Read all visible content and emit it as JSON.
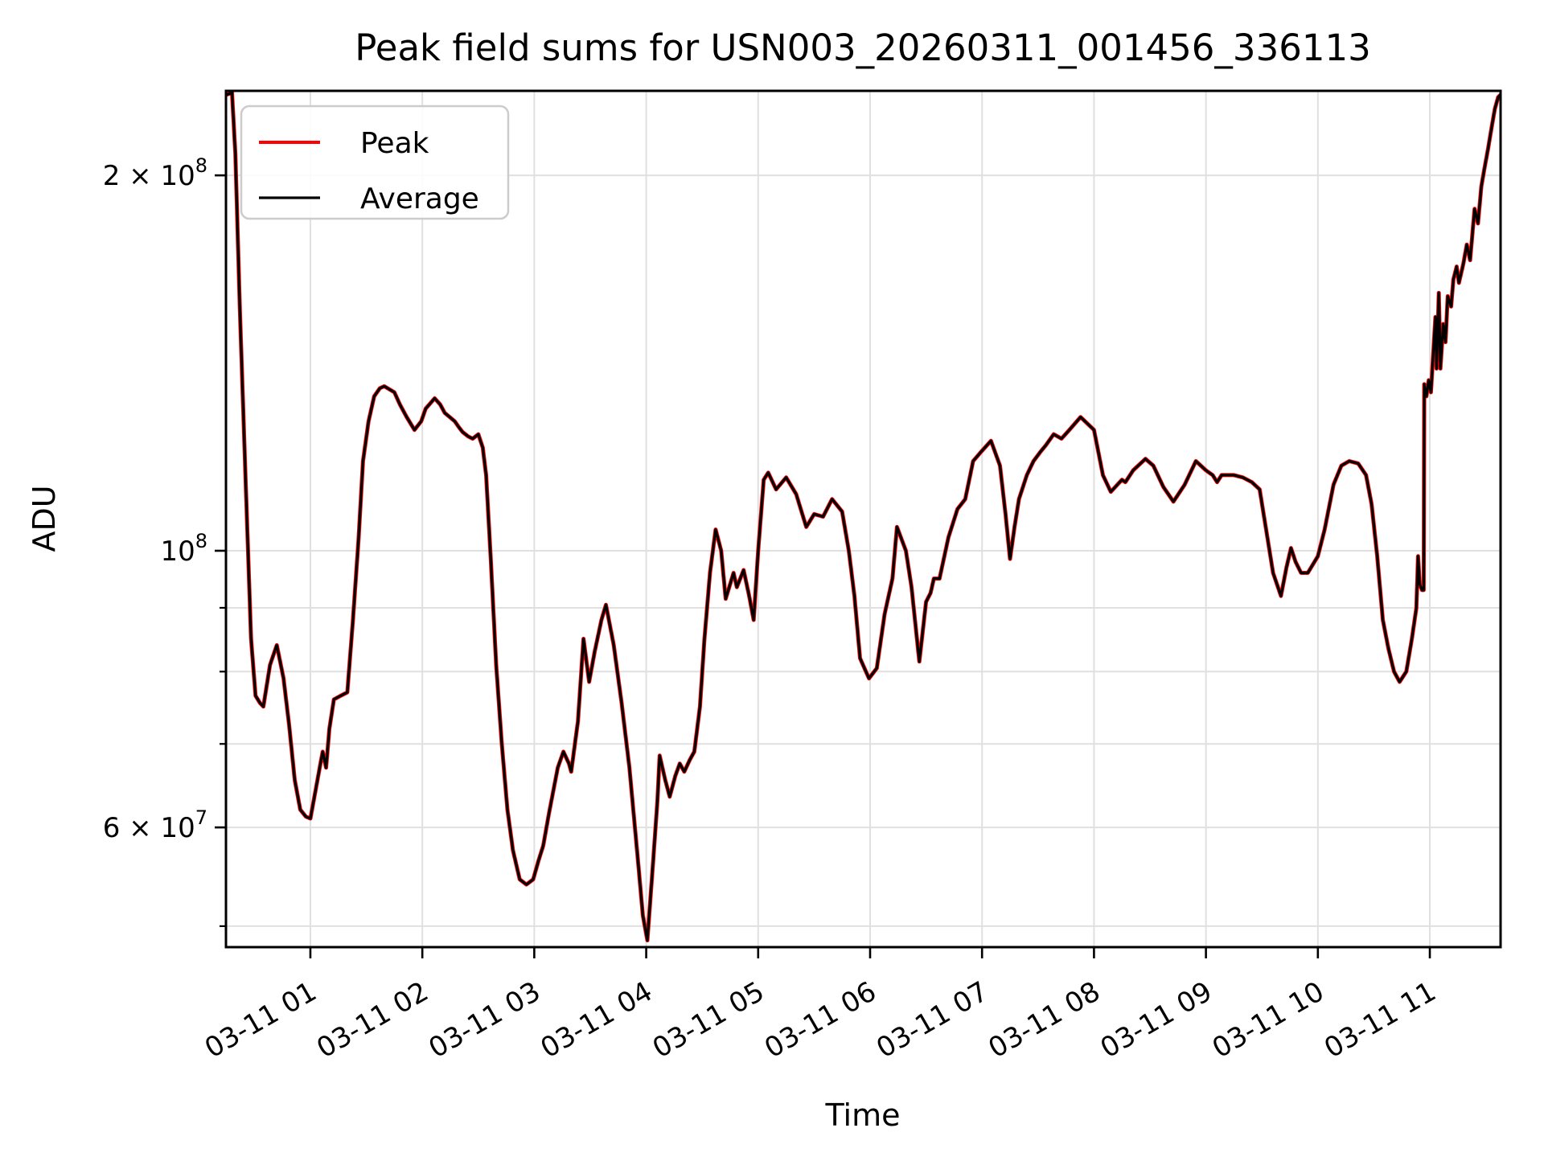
{
  "chart_data": {
    "type": "line",
    "title": "Peak field sums for USN003_20260311_001456_336113",
    "xlabel": "Time",
    "ylabel": "ADU",
    "value_unit": "ADU, stored as millions (1e6)",
    "x_unit": "hours on 2026-03-11",
    "xlim_hours": [
      0.246,
      11.632
    ],
    "ylim": [
      48100000,
      233700000
    ],
    "yscale": "log",
    "grid": true,
    "legend_position": "upper left",
    "colors": {
      "peak": "#ff0000",
      "average": "#000000",
      "grid": "#e0e0e0",
      "spine": "#000000",
      "legend_border": "#cccccc"
    },
    "x_ticks": [
      {
        "hour": 1,
        "label": "03-11 01"
      },
      {
        "hour": 2,
        "label": "03-11 02"
      },
      {
        "hour": 3,
        "label": "03-11 03"
      },
      {
        "hour": 4,
        "label": "03-11 04"
      },
      {
        "hour": 5,
        "label": "03-11 05"
      },
      {
        "hour": 6,
        "label": "03-11 06"
      },
      {
        "hour": 7,
        "label": "03-11 07"
      },
      {
        "hour": 8,
        "label": "03-11 08"
      },
      {
        "hour": 9,
        "label": "03-11 09"
      },
      {
        "hour": 10,
        "label": "03-11 10"
      },
      {
        "hour": 11,
        "label": "03-11 11"
      }
    ],
    "y_ticks_labeled": [
      {
        "value": 60000000,
        "mantissa": "6 × 10",
        "exp": "7"
      },
      {
        "value": 100000000,
        "mantissa": "10",
        "exp": "8"
      },
      {
        "value": 200000000,
        "mantissa": "2 × 10",
        "exp": "8"
      }
    ],
    "y_ticks_minor": [
      50000000,
      70000000,
      80000000,
      90000000
    ],
    "x_hours": [
      0.246,
      0.3,
      0.33,
      0.37,
      0.42,
      0.47,
      0.51,
      0.55,
      0.58,
      0.64,
      0.7,
      0.76,
      0.81,
      0.86,
      0.91,
      0.96,
      1.0,
      1.05,
      1.09,
      1.11,
      1.14,
      1.17,
      1.21,
      1.27,
      1.33,
      1.38,
      1.43,
      1.47,
      1.52,
      1.57,
      1.62,
      1.66,
      1.72,
      1.75,
      1.8,
      1.86,
      1.93,
      1.99,
      2.03,
      2.11,
      2.16,
      2.2,
      2.29,
      2.33,
      2.36,
      2.41,
      2.45,
      2.5,
      2.54,
      2.57,
      2.61,
      2.66,
      2.71,
      2.76,
      2.81,
      2.87,
      2.93,
      2.99,
      3.04,
      3.08,
      3.13,
      3.21,
      3.26,
      3.31,
      3.33,
      3.39,
      3.44,
      3.49,
      3.54,
      3.6,
      3.64,
      3.71,
      3.78,
      3.85,
      3.93,
      3.97,
      4.01,
      4.06,
      4.1,
      4.12,
      4.17,
      4.21,
      4.26,
      4.3,
      4.34,
      4.39,
      4.43,
      4.48,
      4.52,
      4.57,
      4.62,
      4.67,
      4.71,
      4.78,
      4.81,
      4.87,
      4.92,
      4.96,
      5.0,
      5.05,
      5.09,
      5.16,
      5.25,
      5.34,
      5.43,
      5.5,
      5.58,
      5.66,
      5.75,
      5.81,
      5.86,
      5.91,
      5.99,
      6.06,
      6.13,
      6.2,
      6.24,
      6.32,
      6.37,
      6.44,
      6.5,
      6.54,
      6.57,
      6.62,
      6.7,
      6.78,
      6.85,
      6.92,
      6.99,
      7.08,
      7.16,
      7.21,
      7.25,
      7.29,
      7.33,
      7.4,
      7.46,
      7.52,
      7.57,
      7.64,
      7.71,
      7.78,
      7.88,
      8.0,
      8.08,
      8.15,
      8.21,
      8.25,
      8.28,
      8.35,
      8.46,
      8.53,
      8.62,
      8.71,
      8.81,
      8.91,
      9.0,
      9.06,
      9.1,
      9.14,
      9.25,
      9.33,
      9.41,
      9.48,
      9.53,
      9.6,
      9.67,
      9.72,
      9.76,
      9.8,
      9.85,
      9.91,
      10.0,
      10.06,
      10.14,
      10.21,
      10.28,
      10.36,
      10.43,
      10.48,
      10.53,
      10.58,
      10.63,
      10.68,
      10.73,
      10.79,
      10.84,
      10.88,
      10.895,
      10.91,
      10.93,
      10.945,
      10.95,
      10.97,
      10.99,
      11.01,
      11.05,
      11.06,
      11.08,
      11.095,
      11.12,
      11.14,
      11.16,
      11.19,
      11.21,
      11.24,
      11.26,
      11.3,
      11.33,
      11.36,
      11.4,
      11.43,
      11.46,
      11.49,
      11.52,
      11.55,
      11.58,
      11.61,
      11.63
    ],
    "series": [
      {
        "name": "Peak",
        "color": "#ff0000",
        "values": [
          232,
          233,
          208,
          156,
          115,
          85,
          76.5,
          75.5,
          75,
          81,
          84,
          79,
          72.5,
          65.5,
          62,
          61.2,
          61,
          64.5,
          67.5,
          69,
          67,
          72,
          76,
          76.5,
          77,
          88,
          102,
          118,
          127,
          133,
          135,
          135.5,
          134.5,
          134,
          131,
          128,
          125,
          127,
          130,
          132.5,
          131,
          129,
          127,
          125.5,
          124.5,
          123.5,
          123,
          124,
          121,
          115,
          99,
          81,
          70,
          62,
          57.5,
          54.5,
          54,
          54.5,
          56.5,
          58,
          61.5,
          67,
          69,
          67.5,
          66.5,
          73,
          85,
          78.5,
          83,
          88,
          90.5,
          84,
          75.5,
          67,
          56,
          51,
          48.7,
          56,
          63,
          68.5,
          65.5,
          63.5,
          66,
          67.5,
          66.5,
          68,
          69,
          75,
          85,
          96,
          104,
          100,
          91.5,
          96,
          93.5,
          96.5,
          92,
          88,
          100,
          114,
          115.5,
          112,
          114.5,
          111,
          104.5,
          107,
          106.5,
          110,
          107.5,
          100,
          92,
          82,
          79,
          80.5,
          89,
          95,
          104.5,
          100,
          93.5,
          81.5,
          91,
          92.5,
          95,
          95,
          102.5,
          108,
          110,
          118,
          120,
          122.5,
          117,
          107,
          98.5,
          104.5,
          110,
          115,
          118,
          120,
          121.5,
          124,
          123,
          125,
          128,
          125,
          115,
          111.5,
          113,
          114,
          113.5,
          116,
          118.5,
          117,
          112.5,
          109.5,
          113,
          118,
          116,
          115,
          113.5,
          115,
          115,
          114.5,
          113.5,
          112,
          105,
          96,
          92,
          97,
          100.5,
          98,
          96,
          96,
          99,
          104,
          113,
          117,
          118,
          117.5,
          115,
          109,
          99,
          88,
          83.5,
          80,
          78.5,
          80,
          85,
          90,
          99,
          94,
          93,
          93,
          136,
          133,
          137,
          134,
          154,
          140,
          161,
          140,
          152,
          147,
          160,
          157,
          165,
          169,
          164,
          170,
          176,
          171,
          188,
          183,
          196,
          203,
          210,
          218,
          226,
          231,
          232
        ]
      },
      {
        "name": "Average",
        "color": "#000000",
        "values": [
          232,
          233,
          208,
          156,
          115,
          85,
          76.5,
          75.5,
          75,
          81,
          84,
          79,
          72.5,
          65.5,
          62,
          61.2,
          61,
          64.5,
          67.5,
          69,
          67,
          72,
          76,
          76.5,
          77,
          88,
          102,
          118,
          127,
          133,
          135,
          135.5,
          134.5,
          134,
          131,
          128,
          125,
          127,
          130,
          132.5,
          131,
          129,
          127,
          125.5,
          124.5,
          123.5,
          123,
          124,
          121,
          115,
          99,
          81,
          70,
          62,
          57.5,
          54.5,
          54,
          54.5,
          56.5,
          58,
          61.5,
          67,
          69,
          67.5,
          66.5,
          73,
          85,
          78.5,
          83,
          88,
          90.5,
          84,
          75.5,
          67,
          56,
          51,
          48.7,
          56,
          63,
          68.5,
          65.5,
          63.5,
          66,
          67.5,
          66.5,
          68,
          69,
          75,
          85,
          96,
          104,
          100,
          91.5,
          96,
          93.5,
          96.5,
          92,
          88,
          100,
          114,
          115.5,
          112,
          114.5,
          111,
          104.5,
          107,
          106.5,
          110,
          107.5,
          100,
          92,
          82,
          79,
          80.5,
          89,
          95,
          104.5,
          100,
          93.5,
          81.5,
          91,
          92.5,
          95,
          95,
          102.5,
          108,
          110,
          118,
          120,
          122.5,
          117,
          107,
          98.5,
          104.5,
          110,
          115,
          118,
          120,
          121.5,
          124,
          123,
          125,
          128,
          125,
          115,
          111.5,
          113,
          114,
          113.5,
          116,
          118.5,
          117,
          112.5,
          109.5,
          113,
          118,
          116,
          115,
          113.5,
          115,
          115,
          114.5,
          113.5,
          112,
          105,
          96,
          92,
          97,
          100.5,
          98,
          96,
          96,
          99,
          104,
          113,
          117,
          118,
          117.5,
          115,
          109,
          99,
          88,
          83.5,
          80,
          78.5,
          80,
          85,
          90,
          99,
          94,
          93,
          93,
          136,
          133,
          137,
          134,
          154,
          140,
          161,
          140,
          152,
          147,
          160,
          157,
          165,
          169,
          164,
          170,
          176,
          171,
          188,
          183,
          196,
          203,
          210,
          218,
          226,
          231,
          232
        ]
      }
    ],
    "legend_entries": [
      {
        "label": "Peak",
        "color": "#ff0000"
      },
      {
        "label": "Average",
        "color": "#000000"
      }
    ]
  }
}
